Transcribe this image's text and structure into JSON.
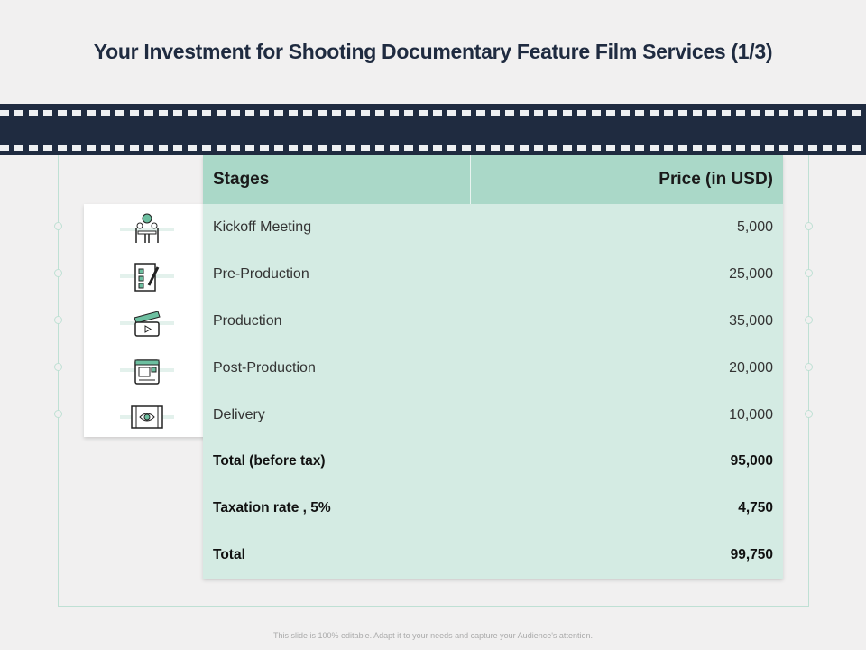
{
  "title": "Your Investment for Shooting Documentary Feature Film Services (1/3)",
  "table": {
    "headers": [
      "Stages",
      "Price (in USD)"
    ],
    "rows": [
      {
        "stage": "Kickoff Meeting",
        "price": "5,000",
        "icon": "meeting-icon"
      },
      {
        "stage": "Pre-Production",
        "price": "25,000",
        "icon": "checklist-icon"
      },
      {
        "stage": "Production",
        "price": "35,000",
        "icon": "clapperboard-icon"
      },
      {
        "stage": "Post-Production",
        "price": "20,000",
        "icon": "video-editing-icon"
      },
      {
        "stage": "Delivery",
        "price": "10,000",
        "icon": "film-eye-icon"
      }
    ],
    "totals": [
      {
        "label": "Total (before tax)",
        "value": "95,000"
      },
      {
        "label": "Taxation rate , 5%",
        "value": "4,750"
      },
      {
        "label": "Total",
        "value": "99,750"
      }
    ]
  },
  "footer": "This slide is 100% editable. Adapt it to your needs and capture your Audience's attention.",
  "colors": {
    "navy": "#1f2b40",
    "header": "#aad8c8",
    "body": "#d4ebe3",
    "accent": "#6dbfa0"
  }
}
